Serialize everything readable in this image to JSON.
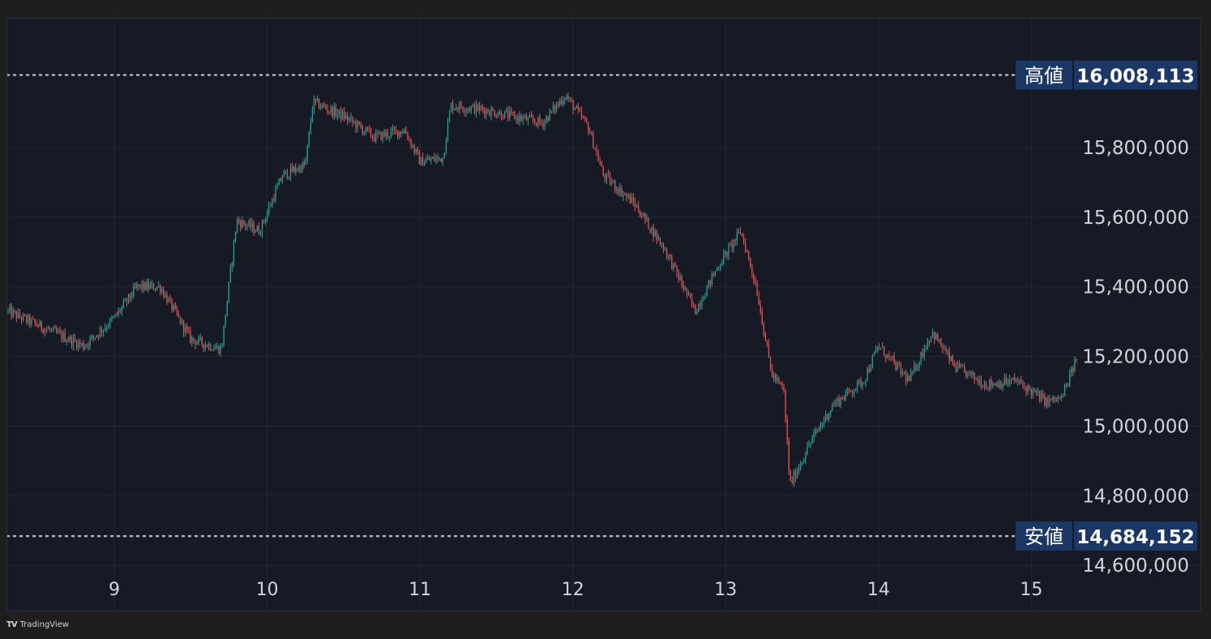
{
  "chart_data": {
    "type": "candlestick",
    "title": "",
    "xlabel": "",
    "ylabel": "",
    "x_ticks": [
      "9",
      "10",
      "11",
      "12",
      "13",
      "14",
      "15"
    ],
    "y_ticks": [
      14600000,
      14800000,
      15000000,
      15200000,
      15400000,
      15600000,
      15800000
    ],
    "y_tick_labels": [
      "14,600,000",
      "14,800,000",
      "15,000,000",
      "15,200,000",
      "15,400,000",
      "15,600,000",
      "15,800,000"
    ],
    "ylim": [
      14540000,
      16170000
    ],
    "xlim": [
      8.3,
      15.3
    ],
    "grid": true,
    "up_color": "#26a69a",
    "down_color": "#ef5350",
    "background": "#161a25",
    "high": {
      "label": "高値",
      "value": 16008113,
      "display": "16,008,113"
    },
    "low": {
      "label": "安値",
      "value": 14684152,
      "display": "14,684,152"
    },
    "series": [
      {
        "name": "",
        "x": [
          8.3,
          8.5,
          8.8,
          9.0,
          9.15,
          9.3,
          9.5,
          9.7,
          9.8,
          9.95,
          10.1,
          10.25,
          10.3,
          10.5,
          10.7,
          10.9,
          11.0,
          11.15,
          11.2,
          11.4,
          11.6,
          11.8,
          11.95,
          12.1,
          12.2,
          12.4,
          12.6,
          12.8,
          12.95,
          13.1,
          13.2,
          13.3,
          13.38,
          13.42,
          13.55,
          13.7,
          13.9,
          14.0,
          14.2,
          14.35,
          14.5,
          14.7,
          14.9,
          15.1,
          15.2,
          15.3
        ],
        "close": [
          15330000,
          15290000,
          15230000,
          15310000,
          15400000,
          15400000,
          15250000,
          15220000,
          15590000,
          15560000,
          15720000,
          15750000,
          15930000,
          15890000,
          15830000,
          15850000,
          15760000,
          15770000,
          15920000,
          15910000,
          15890000,
          15870000,
          15950000,
          15860000,
          15720000,
          15640000,
          15510000,
          15330000,
          15460000,
          15560000,
          15400000,
          15150000,
          15100000,
          14830000,
          14950000,
          15060000,
          15130000,
          15230000,
          15130000,
          15270000,
          15170000,
          15120000,
          15130000,
          15070000,
          15080000,
          15200000
        ]
      }
    ]
  },
  "footer": {
    "brand": "TradingView",
    "logo": "TV"
  }
}
